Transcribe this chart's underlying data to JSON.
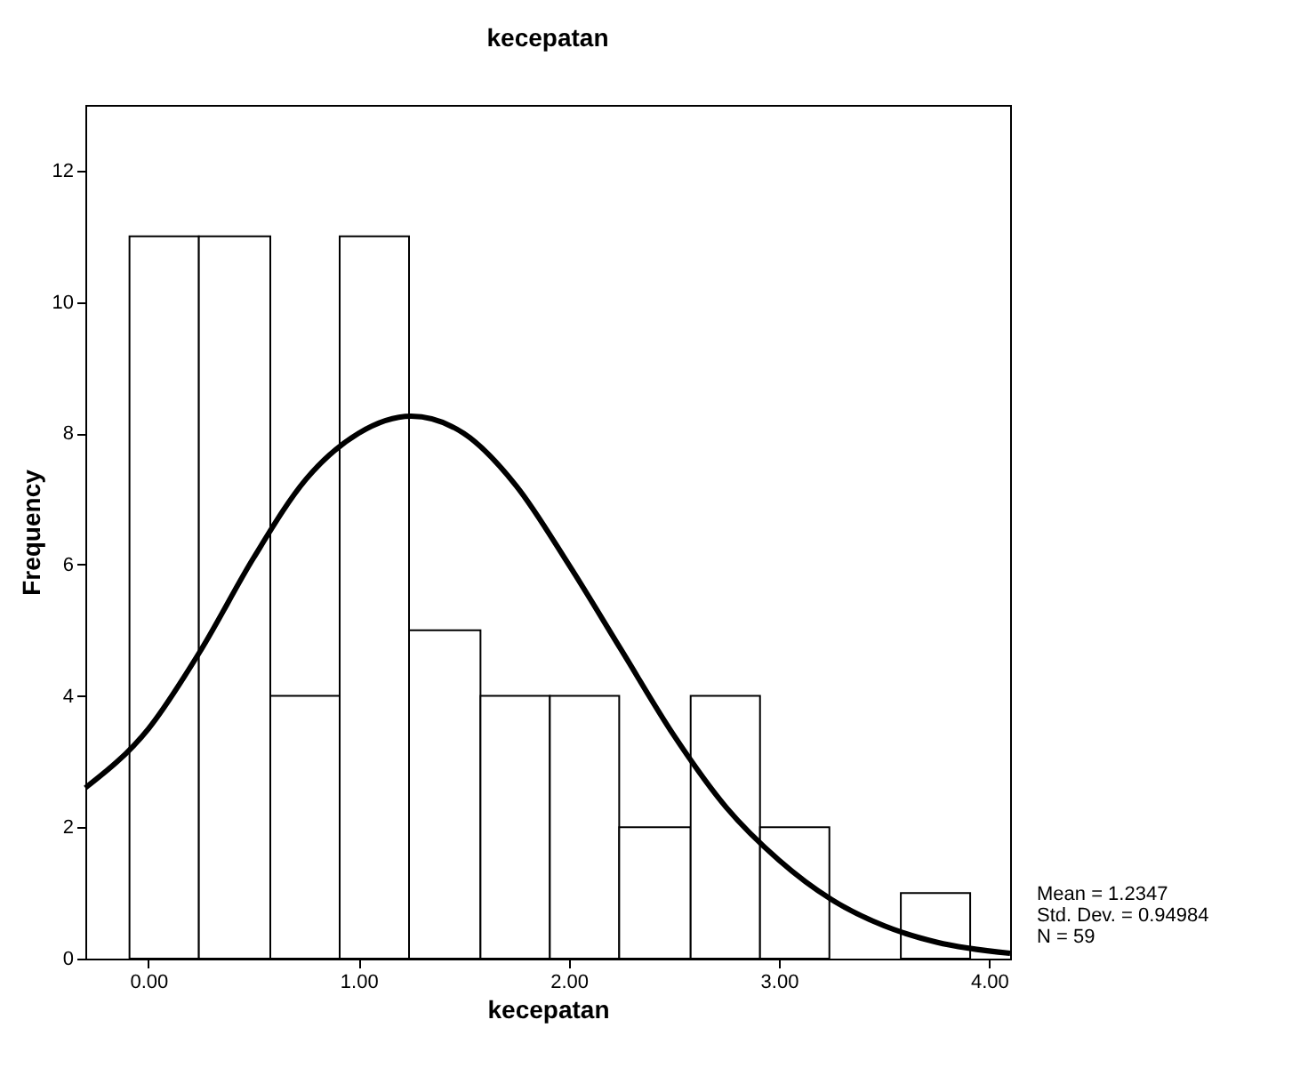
{
  "chart_data": {
    "type": "histogram",
    "title": "kecepatan",
    "xlabel": "kecepatan",
    "ylabel": "Frequency",
    "bins": [
      -0.09,
      0.24,
      0.58,
      0.91,
      1.24,
      1.58,
      1.91,
      2.24,
      2.58,
      2.91,
      3.24,
      3.58,
      3.91
    ],
    "values": [
      11,
      11,
      4,
      11,
      5,
      4,
      4,
      2,
      4,
      2,
      0,
      1
    ],
    "color": "#ffffff",
    "series": [
      {
        "type": "line",
        "color": "#000000",
        "x": [
          -0.3,
          0.0,
          0.25,
          0.5,
          0.75,
          1.0,
          1.25,
          1.5,
          1.75,
          2.0,
          2.25,
          2.5,
          2.75,
          3.0,
          3.25,
          3.5,
          3.75,
          4.1
        ],
        "values": [
          2.6,
          3.5,
          4.7,
          6.1,
          7.3,
          8.0,
          8.26,
          8.0,
          7.2,
          6.0,
          4.7,
          3.4,
          2.3,
          1.5,
          0.9,
          0.5,
          0.25,
          0.08
        ]
      }
    ],
    "xlim": [
      -0.3,
      4.1
    ],
    "ylim": [
      0,
      13
    ],
    "xticks": [
      {
        "value": 0,
        "label": "0.00"
      },
      {
        "value": 1,
        "label": "1.00"
      },
      {
        "value": 2,
        "label": "2.00"
      },
      {
        "value": 3,
        "label": "3.00"
      },
      {
        "value": 4,
        "label": "4.00"
      }
    ],
    "yticks": [
      0,
      2,
      4,
      6,
      8,
      10,
      12
    ],
    "grid": false,
    "annotations": [
      "Mean = 1.2347",
      "Std. Dev. = 0.94984",
      "N = 59"
    ]
  }
}
